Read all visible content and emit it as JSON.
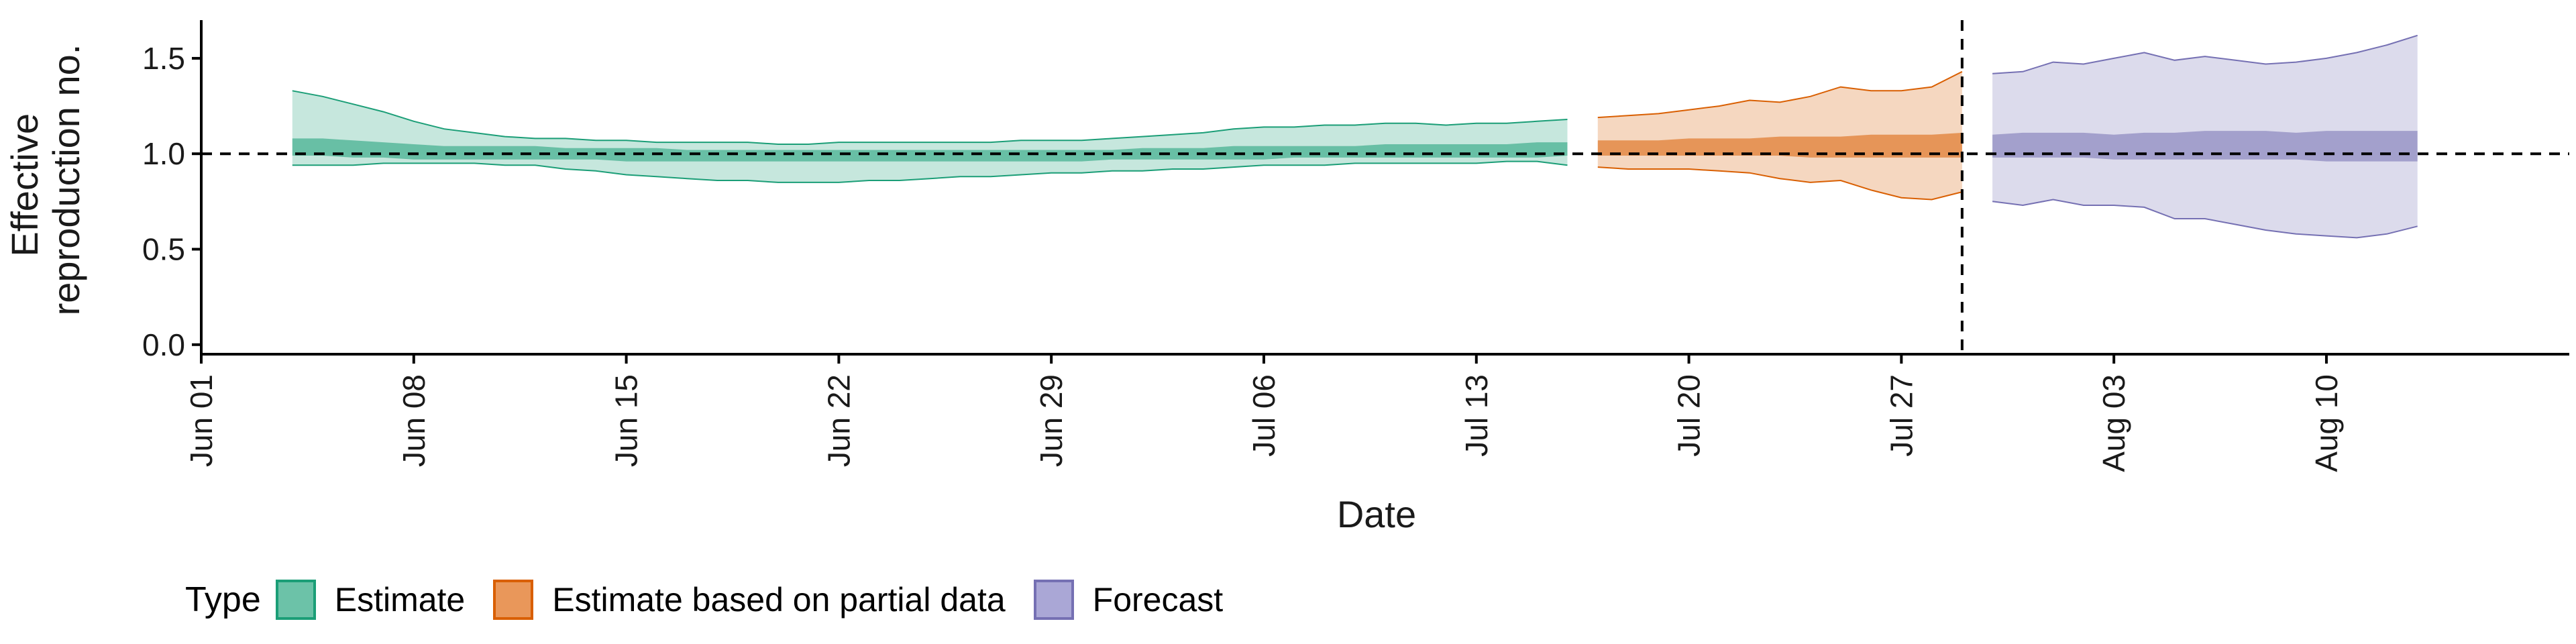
{
  "chart_data": {
    "type": "area",
    "xlabel": "Date",
    "ylabel_lines": [
      "Effective",
      "reproduction no."
    ],
    "x_ticks": [
      "Jun 01",
      "Jun 08",
      "Jun 15",
      "Jun 22",
      "Jun 29",
      "Jul 06",
      "Jul 13",
      "Jul 20",
      "Jul 27",
      "Aug 03",
      "Aug 10"
    ],
    "x_tick_dates": [
      "2020-06-01",
      "2020-06-08",
      "2020-06-15",
      "2020-06-22",
      "2020-06-29",
      "2020-07-06",
      "2020-07-13",
      "2020-07-20",
      "2020-07-27",
      "2020-08-03",
      "2020-08-10"
    ],
    "xlim": [
      "2020-06-01",
      "2020-08-18"
    ],
    "y_ticks": [
      "0.0",
      "0.5",
      "1.0",
      "1.5"
    ],
    "ylim": [
      -0.05,
      1.7
    ],
    "reference_line_y": 1.0,
    "vertical_line_x": "2020-07-29",
    "grid": false,
    "legend_position": "bottom",
    "series": [
      {
        "name": "Estimate",
        "color": "#1b9e77",
        "x": [
          "2020-06-04",
          "2020-06-05",
          "2020-06-06",
          "2020-06-07",
          "2020-06-08",
          "2020-06-09",
          "2020-06-10",
          "2020-06-11",
          "2020-06-12",
          "2020-06-13",
          "2020-06-14",
          "2020-06-15",
          "2020-06-16",
          "2020-06-17",
          "2020-06-18",
          "2020-06-19",
          "2020-06-20",
          "2020-06-21",
          "2020-06-22",
          "2020-06-23",
          "2020-06-24",
          "2020-06-25",
          "2020-06-26",
          "2020-06-27",
          "2020-06-28",
          "2020-06-29",
          "2020-06-30",
          "2020-07-01",
          "2020-07-02",
          "2020-07-03",
          "2020-07-04",
          "2020-07-05",
          "2020-07-06",
          "2020-07-07",
          "2020-07-08",
          "2020-07-09",
          "2020-07-10",
          "2020-07-11",
          "2020-07-12",
          "2020-07-13",
          "2020-07-14",
          "2020-07-15",
          "2020-07-16"
        ],
        "upper90": [
          1.33,
          1.3,
          1.26,
          1.22,
          1.17,
          1.13,
          1.11,
          1.09,
          1.08,
          1.08,
          1.07,
          1.07,
          1.06,
          1.06,
          1.06,
          1.06,
          1.05,
          1.05,
          1.06,
          1.06,
          1.06,
          1.06,
          1.06,
          1.06,
          1.07,
          1.07,
          1.07,
          1.08,
          1.09,
          1.1,
          1.11,
          1.13,
          1.14,
          1.14,
          1.15,
          1.15,
          1.16,
          1.16,
          1.15,
          1.16,
          1.16,
          1.17,
          1.18
        ],
        "lower90": [
          0.94,
          0.94,
          0.94,
          0.95,
          0.95,
          0.95,
          0.95,
          0.94,
          0.94,
          0.92,
          0.91,
          0.89,
          0.88,
          0.87,
          0.86,
          0.86,
          0.85,
          0.85,
          0.85,
          0.86,
          0.86,
          0.87,
          0.88,
          0.88,
          0.89,
          0.9,
          0.9,
          0.91,
          0.91,
          0.92,
          0.92,
          0.93,
          0.94,
          0.94,
          0.94,
          0.95,
          0.95,
          0.95,
          0.95,
          0.95,
          0.96,
          0.96,
          0.94
        ],
        "upper50": [
          1.08,
          1.08,
          1.07,
          1.06,
          1.05,
          1.04,
          1.04,
          1.04,
          1.04,
          1.03,
          1.03,
          1.03,
          1.03,
          1.02,
          1.02,
          1.02,
          1.02,
          1.02,
          1.02,
          1.02,
          1.02,
          1.02,
          1.02,
          1.02,
          1.02,
          1.02,
          1.02,
          1.02,
          1.03,
          1.03,
          1.03,
          1.04,
          1.04,
          1.04,
          1.04,
          1.04,
          1.05,
          1.05,
          1.05,
          1.05,
          1.05,
          1.06,
          1.06
        ],
        "lower50": [
          0.99,
          0.99,
          0.98,
          0.98,
          0.97,
          0.97,
          0.97,
          0.97,
          0.97,
          0.97,
          0.97,
          0.96,
          0.96,
          0.96,
          0.96,
          0.96,
          0.96,
          0.96,
          0.96,
          0.96,
          0.96,
          0.96,
          0.96,
          0.96,
          0.96,
          0.96,
          0.96,
          0.97,
          0.97,
          0.97,
          0.97,
          0.97,
          0.97,
          0.98,
          0.98,
          0.98,
          0.98,
          0.98,
          0.98,
          0.98,
          0.98,
          0.98,
          0.99
        ]
      },
      {
        "name": "Estimate based on partial data",
        "color": "#d95f02",
        "x": [
          "2020-07-17",
          "2020-07-18",
          "2020-07-19",
          "2020-07-20",
          "2020-07-21",
          "2020-07-22",
          "2020-07-23",
          "2020-07-24",
          "2020-07-25",
          "2020-07-26",
          "2020-07-27",
          "2020-07-28",
          "2020-07-29"
        ],
        "upper90": [
          1.19,
          1.2,
          1.21,
          1.23,
          1.25,
          1.28,
          1.27,
          1.3,
          1.35,
          1.33,
          1.33,
          1.35,
          1.43
        ],
        "lower90": [
          0.93,
          0.92,
          0.92,
          0.92,
          0.91,
          0.9,
          0.87,
          0.85,
          0.86,
          0.81,
          0.77,
          0.76,
          0.8
        ],
        "upper50": [
          1.07,
          1.07,
          1.07,
          1.08,
          1.08,
          1.08,
          1.09,
          1.09,
          1.09,
          1.1,
          1.1,
          1.1,
          1.11
        ],
        "lower50": [
          0.99,
          0.99,
          0.99,
          0.99,
          0.99,
          0.99,
          0.99,
          0.98,
          0.98,
          0.98,
          0.98,
          0.98,
          0.98
        ]
      },
      {
        "name": "Forecast",
        "color": "#7570b3",
        "x": [
          "2020-07-30",
          "2020-07-31",
          "2020-08-01",
          "2020-08-02",
          "2020-08-03",
          "2020-08-04",
          "2020-08-05",
          "2020-08-06",
          "2020-08-07",
          "2020-08-08",
          "2020-08-09",
          "2020-08-10",
          "2020-08-11",
          "2020-08-12",
          "2020-08-13"
        ],
        "upper90": [
          1.42,
          1.43,
          1.48,
          1.47,
          1.5,
          1.53,
          1.49,
          1.51,
          1.49,
          1.47,
          1.48,
          1.5,
          1.53,
          1.57,
          1.62
        ],
        "lower90": [
          0.75,
          0.73,
          0.76,
          0.73,
          0.73,
          0.72,
          0.66,
          0.66,
          0.63,
          0.6,
          0.58,
          0.57,
          0.56,
          0.58,
          0.62
        ],
        "upper50": [
          1.1,
          1.11,
          1.11,
          1.11,
          1.1,
          1.11,
          1.11,
          1.12,
          1.12,
          1.12,
          1.11,
          1.12,
          1.12,
          1.12,
          1.12
        ],
        "lower50": [
          0.98,
          0.98,
          0.98,
          0.98,
          0.97,
          0.97,
          0.97,
          0.97,
          0.97,
          0.97,
          0.97,
          0.96,
          0.96,
          0.96,
          0.96
        ]
      }
    ]
  },
  "legend": {
    "title": "Type",
    "items": [
      {
        "label": "Estimate",
        "fill": "#6cc2a8",
        "border": "#1b9e77"
      },
      {
        "label": "Estimate based on partial data",
        "fill": "#e9975a",
        "border": "#d95f02"
      },
      {
        "label": "Forecast",
        "fill": "#aaa7d6",
        "border": "#7570b3"
      }
    ]
  }
}
